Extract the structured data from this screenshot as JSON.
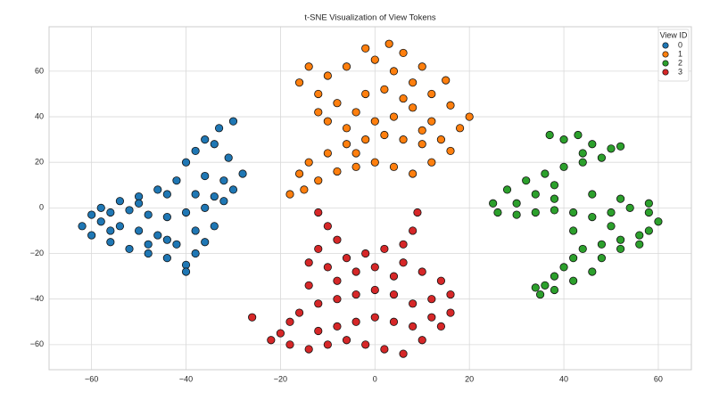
{
  "chart_data": {
    "type": "scatter",
    "title": "t-SNE Visualization of View Tokens",
    "legend_title": "View ID",
    "legend_loc": "upper right",
    "grid": true,
    "xlim": [
      -69,
      67
    ],
    "ylim": [
      -71,
      79.5
    ],
    "xticks": [
      {
        "value": -60,
        "label": "−60"
      },
      {
        "value": -40,
        "label": "−40"
      },
      {
        "value": -20,
        "label": "−20"
      },
      0,
      20,
      40,
      60
    ],
    "yticks": [
      {
        "value": -60,
        "label": "−60"
      },
      {
        "value": -40,
        "label": "−40"
      },
      {
        "value": -20,
        "label": "−20"
      },
      0,
      20,
      40,
      60
    ],
    "series": [
      {
        "name": "0",
        "color": "#1f77b4",
        "x": [
          -30,
          -33,
          -36,
          -38,
          -40,
          -34,
          -31,
          -28,
          -32,
          -36,
          -42,
          -46,
          -50,
          -54,
          -58,
          -60,
          -56,
          -52,
          -48,
          -44,
          -40,
          -36,
          -32,
          -30,
          -34,
          -38,
          -44,
          -50,
          -62,
          -60,
          -56,
          -52,
          -48,
          -44,
          -40,
          -38,
          -42,
          -46,
          -50,
          -54,
          -58,
          -40,
          -36,
          -34,
          -38,
          -44,
          -48,
          -56
        ],
        "values": [
          38,
          35,
          30,
          25,
          20,
          28,
          22,
          15,
          12,
          14,
          12,
          8,
          5,
          3,
          0,
          -3,
          -2,
          -1,
          -3,
          -4,
          -2,
          0,
          3,
          8,
          5,
          6,
          6,
          2,
          -8,
          -12,
          -15,
          -18,
          -20,
          -22,
          -25,
          -20,
          -16,
          -12,
          -10,
          -8,
          -6,
          -28,
          -15,
          -8,
          -10,
          -14,
          -16,
          -10
        ]
      },
      {
        "name": "1",
        "color": "#ff7f0e",
        "x": [
          -15,
          -18,
          -12,
          -8,
          -4,
          0,
          4,
          8,
          12,
          16,
          18,
          20,
          16,
          12,
          8,
          4,
          0,
          -2,
          3,
          6,
          10,
          -6,
          -10,
          -14,
          -16,
          -12,
          -8,
          -4,
          0,
          4,
          8,
          12,
          14,
          10,
          6,
          2,
          -2,
          -6,
          -10,
          -14,
          -16,
          -6,
          -10,
          -2,
          2,
          6,
          10,
          -4,
          -12,
          15
        ],
        "values": [
          8,
          6,
          12,
          16,
          18,
          20,
          18,
          15,
          20,
          25,
          35,
          40,
          45,
          50,
          55,
          60,
          65,
          70,
          72,
          68,
          62,
          62,
          58,
          62,
          55,
          50,
          46,
          42,
          38,
          40,
          44,
          38,
          30,
          28,
          30,
          32,
          30,
          28,
          24,
          20,
          15,
          35,
          38,
          50,
          52,
          48,
          34,
          24,
          42,
          56
        ]
      },
      {
        "name": "2",
        "color": "#2ca02c",
        "x": [
          37,
          40,
          43,
          46,
          50,
          52,
          48,
          44,
          40,
          36,
          32,
          28,
          25,
          26,
          30,
          34,
          38,
          42,
          46,
          50,
          54,
          58,
          60,
          58,
          56,
          52,
          48,
          44,
          42,
          40,
          38,
          36,
          35,
          34,
          38,
          42,
          46,
          48,
          52,
          56,
          44,
          38,
          34,
          30,
          38,
          46,
          52,
          58,
          42,
          50
        ],
        "values": [
          32,
          30,
          32,
          28,
          26,
          27,
          22,
          20,
          18,
          15,
          12,
          8,
          2,
          -2,
          -3,
          -2,
          -1,
          -2,
          -4,
          -2,
          0,
          -2,
          -6,
          -10,
          -12,
          -14,
          -16,
          -18,
          -22,
          -26,
          -30,
          -34,
          -38,
          -35,
          -36,
          -32,
          -28,
          -22,
          -18,
          -16,
          24,
          10,
          6,
          2,
          4,
          6,
          4,
          2,
          -10,
          -8
        ]
      },
      {
        "name": "3",
        "color": "#d62728",
        "x": [
          -12,
          -10,
          -8,
          -12,
          -14,
          -10,
          -6,
          -2,
          2,
          6,
          8,
          9,
          6,
          10,
          14,
          16,
          12,
          8,
          4,
          0,
          -4,
          -8,
          -12,
          -16,
          -18,
          -20,
          -22,
          -26,
          -18,
          -14,
          -10,
          -6,
          -2,
          2,
          6,
          10,
          14,
          16,
          12,
          8,
          4,
          0,
          -4,
          -8,
          -12,
          -4,
          0,
          -8,
          -14,
          4
        ],
        "values": [
          -2,
          -8,
          -14,
          -18,
          -24,
          -26,
          -22,
          -20,
          -18,
          -16,
          -10,
          -2,
          -24,
          -28,
          -32,
          -38,
          -40,
          -42,
          -38,
          -36,
          -38,
          -40,
          -42,
          -46,
          -50,
          -55,
          -58,
          -48,
          -60,
          -62,
          -60,
          -58,
          -60,
          -62,
          -64,
          -58,
          -52,
          -46,
          -48,
          -52,
          -50,
          -48,
          -50,
          -52,
          -54,
          -28,
          -26,
          -32,
          -34,
          -30
        ]
      }
    ]
  }
}
